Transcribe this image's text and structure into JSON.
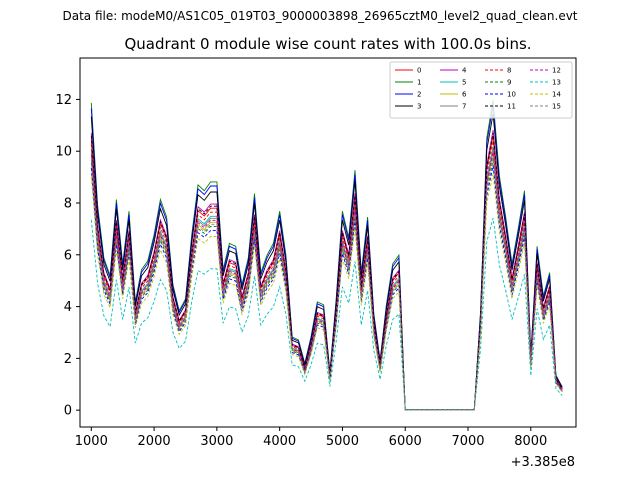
{
  "suptitle": "Data file: modeM0/AS1C05_019T03_9000003898_26965cztM0_level2_quad_clean.evt",
  "chart_data": {
    "type": "line",
    "title": "Quadrant 0 module wise count rates with 100.0s bins.",
    "xlabel": "",
    "ylabel": "",
    "x_offset_label": "+3.385e8",
    "xlim": [
      820,
      8720
    ],
    "ylim": [
      -0.65,
      13.6
    ],
    "xticks": [
      1000,
      2000,
      3000,
      4000,
      5000,
      6000,
      7000,
      8000
    ],
    "yticks": [
      0,
      2,
      4,
      6,
      8,
      10,
      12
    ],
    "legend_position": "upper right",
    "legend_columns": 4,
    "base_x": [
      1000,
      1100,
      1200,
      1300,
      1400,
      1500,
      1600,
      1700,
      1800,
      1900,
      2000,
      2100,
      2200,
      2300,
      2400,
      2500,
      2600,
      2700,
      2800,
      2900,
      3000,
      3100,
      3200,
      3300,
      3400,
      3500,
      3600,
      3700,
      3800,
      3900,
      4000,
      4100,
      4200,
      4300,
      4400,
      4500,
      4600,
      4700,
      4800,
      4900,
      5000,
      5100,
      5200,
      5300,
      5400,
      5500,
      5600,
      5700,
      5800,
      5900,
      6000,
      6100,
      6200,
      6300,
      6400,
      6500,
      6600,
      6700,
      6800,
      6900,
      7000,
      7100,
      7200,
      7300,
      7400,
      7500,
      7600,
      7700,
      7800,
      7900,
      8000,
      8100,
      8200,
      8300,
      8400,
      8500
    ],
    "base_profile": [
      10.5,
      7.0,
      5.2,
      4.6,
      7.2,
      5.0,
      6.8,
      3.7,
      4.8,
      5.1,
      6.0,
      7.2,
      6.6,
      4.3,
      3.4,
      3.8,
      6.0,
      7.7,
      7.5,
      7.8,
      7.8,
      4.8,
      5.7,
      5.6,
      4.3,
      5.2,
      7.4,
      4.7,
      5.3,
      5.7,
      6.8,
      5.3,
      2.5,
      2.4,
      1.6,
      2.5,
      3.7,
      3.6,
      1.3,
      3.8,
      6.8,
      5.9,
      8.2,
      4.7,
      6.6,
      3.3,
      1.7,
      3.6,
      5.0,
      5.3,
      0.02,
      0.02,
      0.02,
      0.02,
      0.02,
      0.02,
      0.02,
      0.02,
      0.02,
      0.02,
      0.02,
      0.02,
      3.4,
      9.3,
      10.6,
      8.0,
      6.6,
      5.0,
      6.2,
      7.5,
      1.9,
      5.6,
      3.9,
      4.7,
      1.2,
      0.8
    ],
    "series": [
      {
        "name": "0",
        "color": "#ff0000",
        "style": "solid",
        "scale": 1.0
      },
      {
        "name": "1",
        "color": "#008000",
        "style": "solid",
        "scale": 1.13
      },
      {
        "name": "2",
        "color": "#0000ff",
        "style": "solid",
        "scale": 1.11
      },
      {
        "name": "3",
        "color": "#000000",
        "style": "solid",
        "scale": 1.08
      },
      {
        "name": "4",
        "color": "#bf00bf",
        "style": "solid",
        "scale": 1.02
      },
      {
        "name": "5",
        "color": "#00bfbf",
        "style": "solid",
        "scale": 0.96
      },
      {
        "name": "6",
        "color": "#bfbf00",
        "style": "solid",
        "scale": 0.93
      },
      {
        "name": "7",
        "color": "#808080",
        "style": "solid",
        "scale": 0.95
      },
      {
        "name": "8",
        "color": "#ff0000",
        "style": "dashed",
        "scale": 0.98
      },
      {
        "name": "9",
        "color": "#008000",
        "style": "dashed",
        "scale": 0.91
      },
      {
        "name": "10",
        "color": "#0000ff",
        "style": "dashed",
        "scale": 0.89
      },
      {
        "name": "11",
        "color": "#000000",
        "style": "dashed",
        "scale": 1.01
      },
      {
        "name": "12",
        "color": "#bf00bf",
        "style": "dashed",
        "scale": 0.94
      },
      {
        "name": "13",
        "color": "#00bfbf",
        "style": "dashed",
        "scale": 0.7
      },
      {
        "name": "14",
        "color": "#bfbf00",
        "style": "dashed",
        "scale": 0.86
      },
      {
        "name": "15",
        "color": "#808080",
        "style": "dashed",
        "scale": 0.92
      }
    ]
  }
}
